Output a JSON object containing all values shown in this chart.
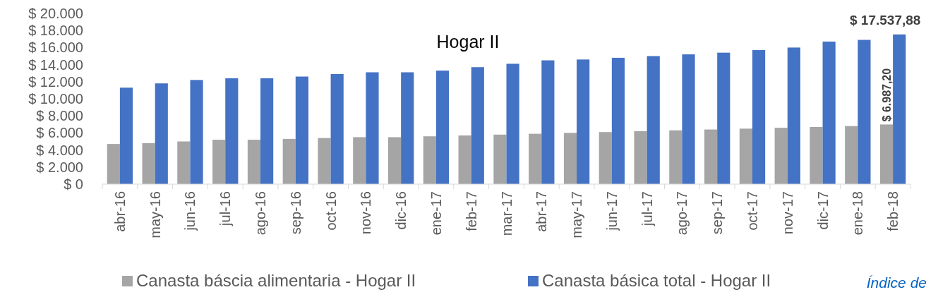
{
  "chart_data": {
    "type": "bar",
    "title": "Hogar II",
    "categories": [
      "abr-16",
      "may-16",
      "jun-16",
      "jul-16",
      "ago-16",
      "sep-16",
      "oct-16",
      "nov-16",
      "dic-16",
      "ene-17",
      "feb-17",
      "mar-17",
      "abr-17",
      "may-17",
      "jun-17",
      "jul-17",
      "ago-17",
      "sep-17",
      "oct-17",
      "nov-17",
      "dic-17",
      "ene-18",
      "feb-18"
    ],
    "series": [
      {
        "name": "Canasta báscia alimentaria - Hogar II",
        "color": "#a5a5a5",
        "values": [
          4700,
          4800,
          5000,
          5200,
          5200,
          5300,
          5400,
          5500,
          5500,
          5600,
          5700,
          5800,
          5900,
          6000,
          6100,
          6200,
          6300,
          6400,
          6500,
          6600,
          6700,
          6800,
          6987.2
        ],
        "value_labels": [
          null,
          null,
          null,
          null,
          null,
          null,
          null,
          null,
          null,
          null,
          null,
          null,
          null,
          null,
          null,
          null,
          null,
          null,
          null,
          null,
          null,
          null,
          "$ 6.987,20"
        ]
      },
      {
        "name": "Canasta básica total - Hogar II",
        "color": "#4472c4",
        "values": [
          11300,
          11800,
          12200,
          12400,
          12400,
          12600,
          12900,
          13100,
          13100,
          13300,
          13700,
          14100,
          14500,
          14600,
          14800,
          15000,
          15200,
          15400,
          15700,
          16000,
          16700,
          16900,
          17537.88
        ],
        "value_labels": [
          null,
          null,
          null,
          null,
          null,
          null,
          null,
          null,
          null,
          null,
          null,
          null,
          null,
          null,
          null,
          null,
          null,
          null,
          null,
          null,
          null,
          null,
          "$ 17.537,88"
        ]
      }
    ],
    "ylim": [
      0,
      20000
    ],
    "yticks": [
      {
        "value": 0,
        "label": "$ 0"
      },
      {
        "value": 2000,
        "label": "$ 2.000"
      },
      {
        "value": 4000,
        "label": "$ 4.000"
      },
      {
        "value": 6000,
        "label": "$ 6.000"
      },
      {
        "value": 8000,
        "label": "$ 8.000"
      },
      {
        "value": 10000,
        "label": "$ 10.000"
      },
      {
        "value": 12000,
        "label": "$ 12.000"
      },
      {
        "value": 14000,
        "label": "$ 14.000"
      },
      {
        "value": 16000,
        "label": "$ 16.000"
      },
      {
        "value": 18000,
        "label": "$ 18.000"
      },
      {
        "value": 20000,
        "label": "$ 20.000"
      }
    ],
    "legend": "bottom",
    "annotations": [
      "Índice de"
    ]
  }
}
